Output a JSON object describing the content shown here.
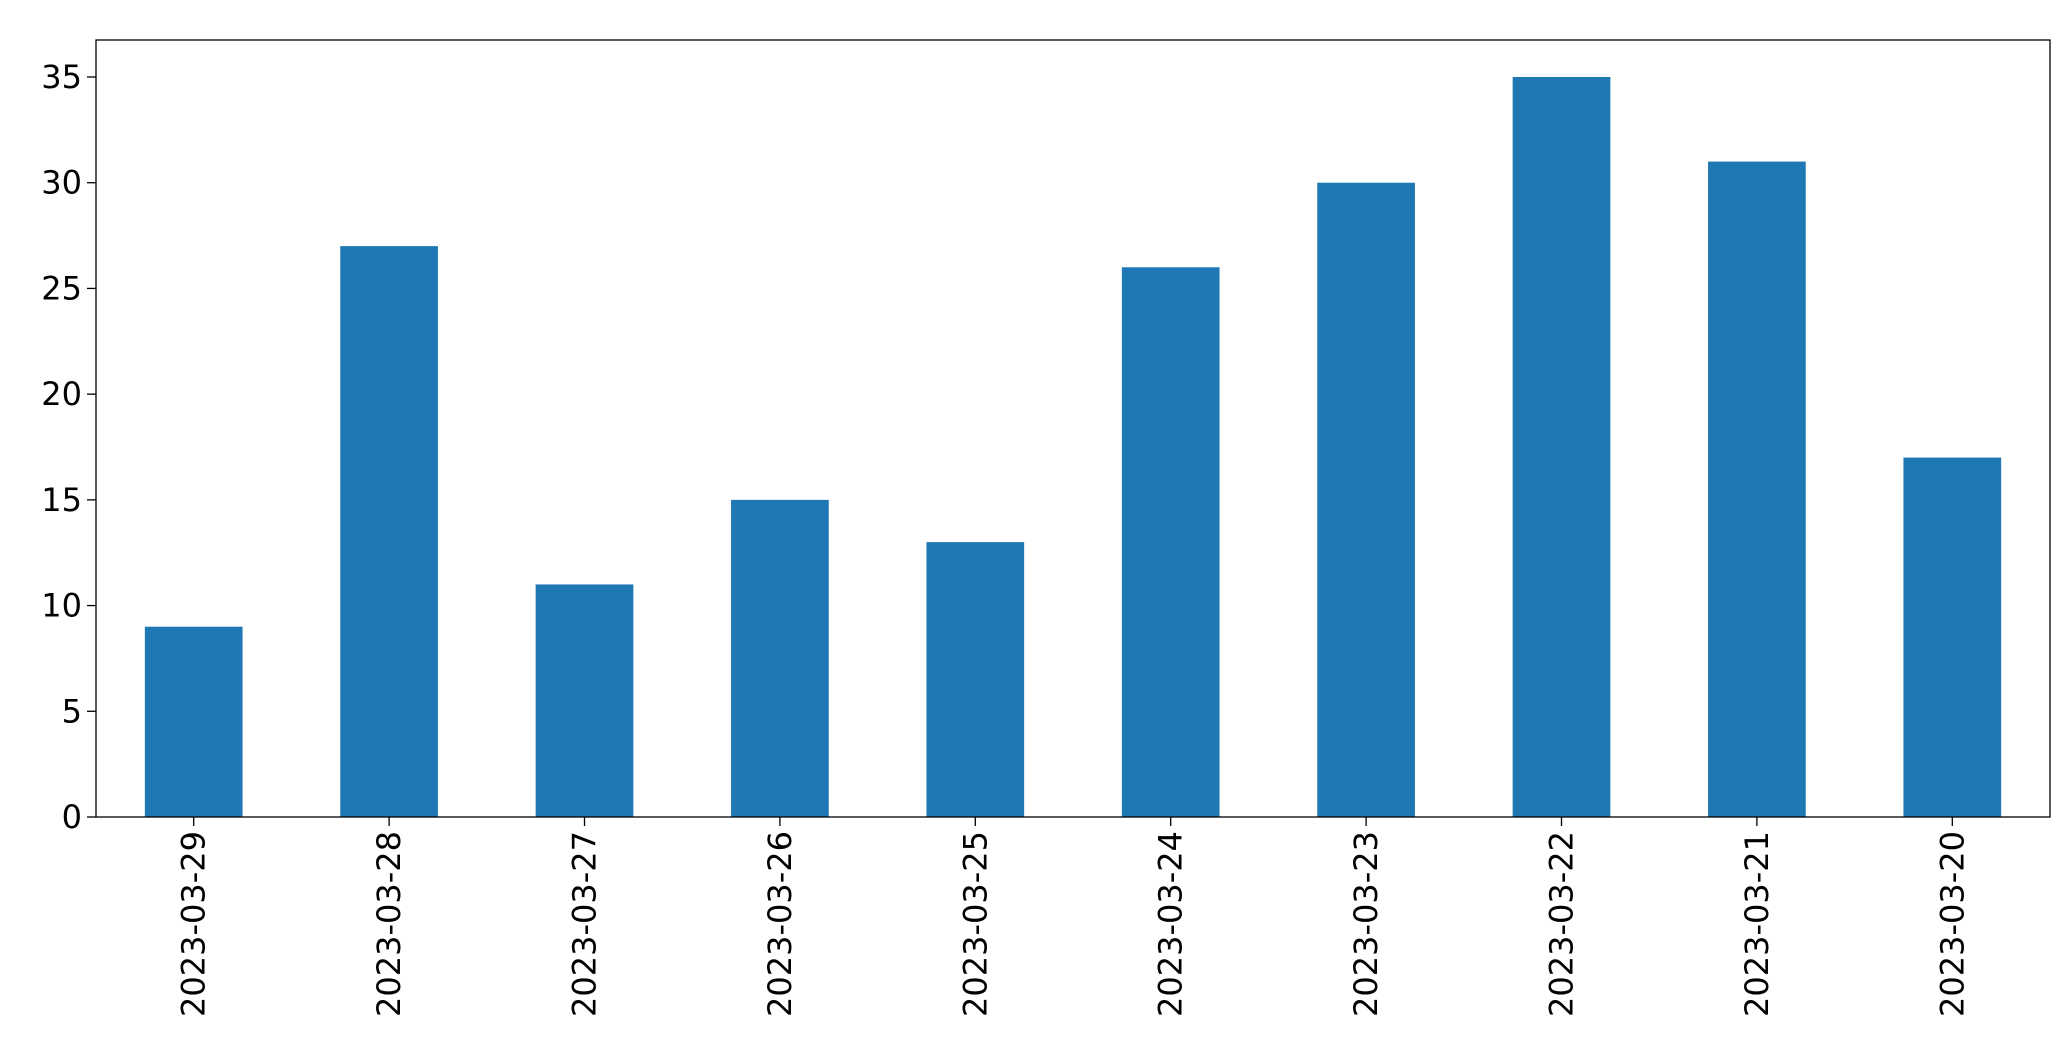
{
  "chart_data": {
    "type": "bar",
    "categories": [
      "2023-03-29",
      "2023-03-28",
      "2023-03-27",
      "2023-03-26",
      "2023-03-25",
      "2023-03-24",
      "2023-03-23",
      "2023-03-22",
      "2023-03-21",
      "2023-03-20"
    ],
    "values": [
      9,
      27,
      11,
      15,
      13,
      26,
      30,
      35,
      31,
      17
    ],
    "color": "#1f77b4",
    "ylim": [
      0,
      36.75
    ],
    "yticks": [
      0,
      5,
      10,
      15,
      20,
      25,
      30,
      35
    ],
    "grid": false
  }
}
